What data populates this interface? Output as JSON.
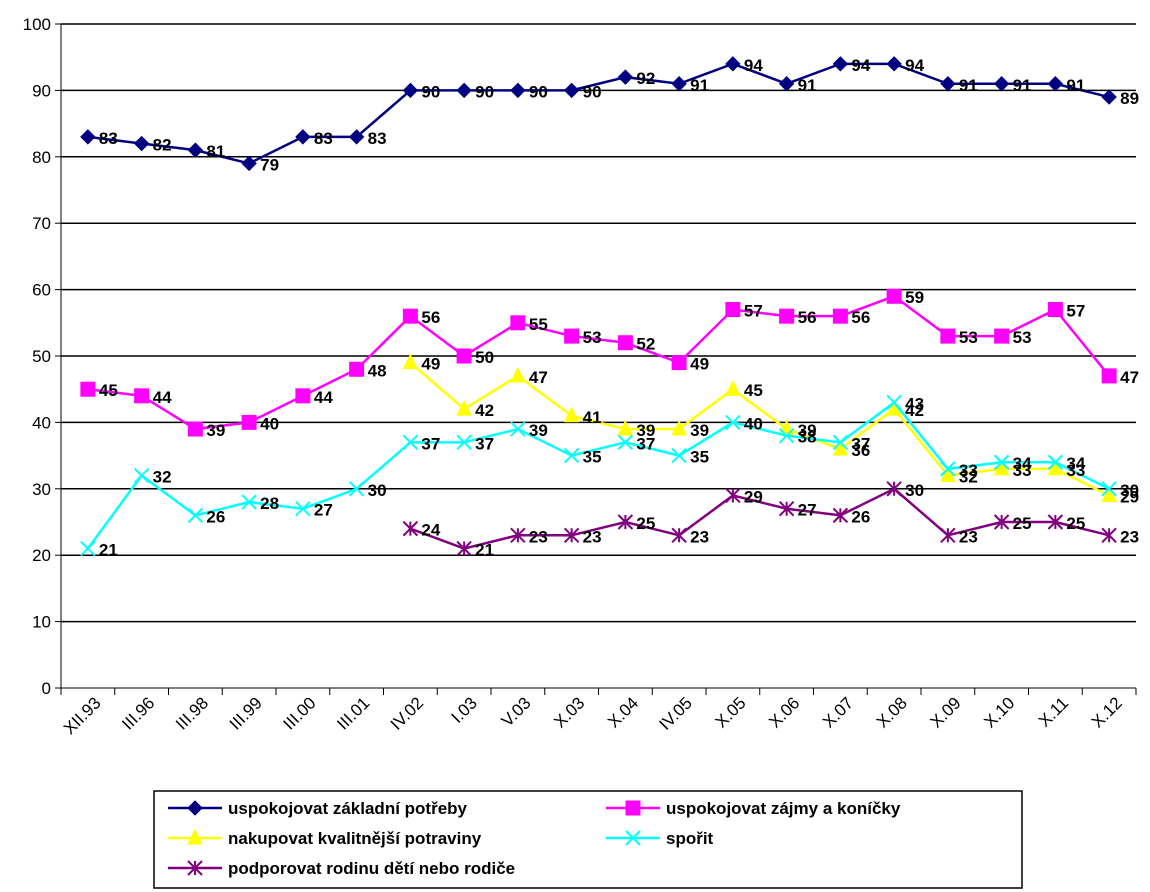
{
  "chart_data": {
    "type": "line",
    "categories": [
      "XII.93",
      "III.96",
      "III.98",
      "III.99",
      "III.00",
      "III.01",
      "IV.02",
      "I.03",
      "V.03",
      "X.03",
      "X.04",
      "IV.05",
      "X.05",
      "X.06",
      "X.07",
      "X.08",
      "X.09",
      "X.10",
      "X.11",
      "X.12"
    ],
    "ylim": [
      0,
      100
    ],
    "yticks": [
      0,
      10,
      20,
      30,
      40,
      50,
      60,
      70,
      80,
      90,
      100
    ],
    "grid": true,
    "legend_position": "bottom",
    "series": [
      {
        "name": "uspokojovat základní potřeby",
        "color": "#000080",
        "marker": "diamond",
        "values": [
          83,
          82,
          81,
          79,
          83,
          83,
          90,
          90,
          90,
          90,
          92,
          91,
          94,
          91,
          94,
          94,
          91,
          91,
          91,
          89
        ]
      },
      {
        "name": "uspokojovat zájmy a koníčky",
        "color": "#FF00FF",
        "marker": "square",
        "values": [
          45,
          44,
          39,
          40,
          44,
          48,
          56,
          50,
          55,
          53,
          52,
          49,
          57,
          56,
          56,
          59,
          53,
          53,
          57,
          47
        ]
      },
      {
        "name": "nakupovat kvalitnější potraviny",
        "color": "#FFFF00",
        "marker": "triangle",
        "values": [
          null,
          null,
          null,
          null,
          null,
          null,
          49,
          42,
          47,
          41,
          39,
          39,
          45,
          39,
          36,
          42,
          32,
          33,
          33,
          29
        ]
      },
      {
        "name": "spořit",
        "color": "#00FFFF",
        "marker": "x",
        "values": [
          21,
          32,
          26,
          28,
          27,
          30,
          37,
          37,
          39,
          35,
          37,
          35,
          40,
          38,
          37,
          43,
          33,
          34,
          34,
          30
        ]
      },
      {
        "name": "podporovat rodinu dětí nebo rodiče",
        "color": "#800080",
        "marker": "star",
        "values": [
          null,
          null,
          null,
          null,
          null,
          null,
          24,
          21,
          23,
          23,
          25,
          23,
          29,
          27,
          26,
          30,
          23,
          25,
          25,
          23
        ]
      }
    ]
  }
}
